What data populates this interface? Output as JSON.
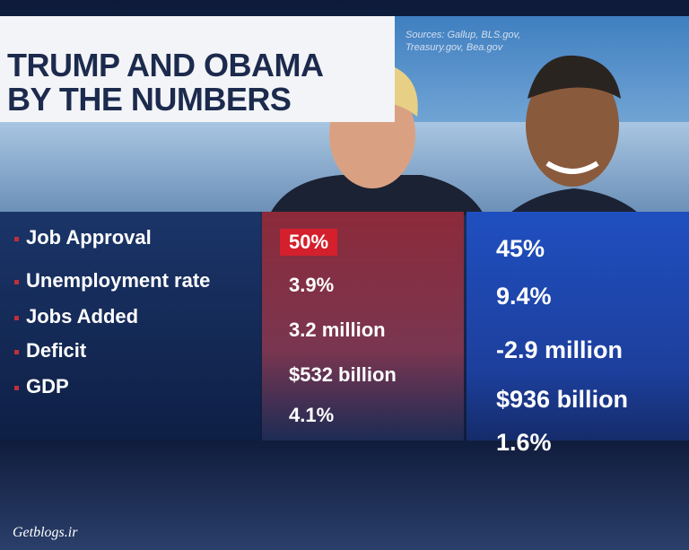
{
  "header": {
    "title_lines": [
      "TRUMP AND OBAMA",
      "BY THE NUMBERS"
    ],
    "sources": [
      "Sources: Gallup, BLS.gov,",
      "Treasury.gov, Bea.gov"
    ]
  },
  "table": {
    "rows": [
      [
        "Job Approval",
        "50%",
        "45%"
      ],
      [
        "Unemployment rate",
        "3.9%",
        "9.4%"
      ],
      [
        "Jobs Added",
        "3.2 million",
        "-2.9 million"
      ],
      [
        "Deficit",
        "$532 billion",
        "$936 billion"
      ],
      [
        "GDP",
        "4.1%",
        "1.6%"
      ]
    ]
  },
  "watermark": "Getblogs.ir"
}
